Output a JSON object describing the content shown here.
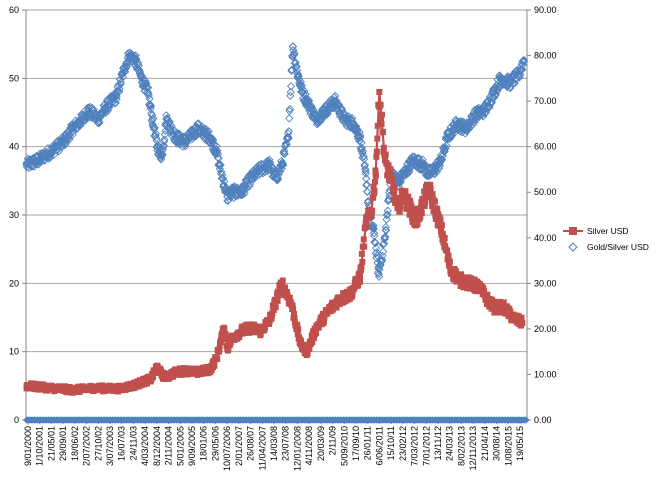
{
  "chart_data": {
    "type": "line",
    "grid": true,
    "legend_placement": "right",
    "title": "",
    "xlabel": "",
    "ylabel": "",
    "ylim_left": [
      0,
      60
    ],
    "ylim_right": [
      0,
      90
    ],
    "left_ticks": [
      "0",
      "10",
      "20",
      "30",
      "40",
      "50",
      "60"
    ],
    "right_ticks": [
      "0.00",
      "10.00",
      "20.00",
      "30.00",
      "40.00",
      "50.00",
      "60.00",
      "70.00",
      "80.00",
      "90.00"
    ],
    "x_labels": [
      "9/01/2000",
      "1/10/2001",
      "21/05/01",
      "29/09/01",
      "18/06/02",
      "2/07/2002",
      "27/10/02",
      "3/07/2003",
      "16/07/03",
      "24/11/03",
      "4/03/2004",
      "8/12/2004",
      "2/11/2004",
      "5/01/2005",
      "9/09/2005",
      "18/01/06",
      "29/05/06",
      "10/07/2006",
      "2/01/2007",
      "26/08/07",
      "11/04/2007",
      "14/03/08",
      "23/07/08",
      "12/01/2008",
      "4/11/2008",
      "20/03/09",
      "2/11/09",
      "5/09/2010",
      "17/09/10",
      "26/01/11",
      "6/06/2011",
      "15/10/11",
      "23/02/12",
      "7/03/2012",
      "7/01/2012",
      "13/11/12",
      "24/03/13",
      "8/02/2013",
      "12/11/2013",
      "21/04/14",
      "30/08/14",
      "1/08/2015",
      "19/05/15"
    ],
    "series": [
      {
        "name": "Silver USD",
        "axis": "left",
        "color": "#c0504d",
        "marker": "square",
        "x": [
          2000.02,
          2000.5,
          2001.0,
          2001.5,
          2001.8,
          2002.2,
          2002.6,
          2003.0,
          2003.4,
          2003.7,
          2004.0,
          2004.2,
          2004.35,
          2004.5,
          2004.8,
          2005.1,
          2005.5,
          2005.9,
          2006.1,
          2006.35,
          2006.45,
          2006.6,
          2006.9,
          2007.2,
          2007.5,
          2007.8,
          2008.05,
          2008.2,
          2008.5,
          2008.8,
          2009.0,
          2009.3,
          2009.7,
          2010.0,
          2010.4,
          2010.7,
          2010.9,
          2011.05,
          2011.2,
          2011.32,
          2011.5,
          2011.7,
          2011.9,
          2012.1,
          2012.5,
          2012.9,
          2013.1,
          2013.3,
          2013.6,
          2013.9,
          2014.2,
          2014.5,
          2014.8,
          2015.0,
          2015.3,
          2015.6,
          2015.9
        ],
        "values": [
          5.0,
          4.8,
          4.6,
          4.4,
          4.5,
          4.7,
          4.6,
          4.6,
          5.0,
          5.5,
          6.0,
          7.8,
          6.6,
          6.3,
          7.0,
          7.2,
          7.0,
          7.4,
          9.0,
          13.5,
          10.5,
          12.0,
          13.0,
          13.5,
          13.0,
          14.5,
          18.0,
          20.0,
          17.0,
          11.0,
          10.0,
          13.5,
          16.0,
          17.5,
          18.5,
          21.0,
          29.0,
          30.0,
          36.0,
          48.0,
          38.0,
          35.0,
          31.0,
          33.0,
          29.0,
          34.0,
          31.0,
          28.0,
          22.0,
          20.5,
          20.0,
          19.5,
          17.5,
          16.5,
          16.5,
          15.0,
          14.2
        ]
      },
      {
        "name": "Gold/Silver USD",
        "axis": "right",
        "color": "#4f81bd",
        "marker": "diamond-open",
        "x": [
          2000.02,
          2000.4,
          2000.8,
          2001.2,
          2001.5,
          2001.8,
          2002.0,
          2002.3,
          2002.6,
          2002.9,
          2003.1,
          2003.3,
          2003.5,
          2003.7,
          2003.9,
          2004.05,
          2004.2,
          2004.35,
          2004.5,
          2004.8,
          2005.1,
          2005.5,
          2005.9,
          2006.1,
          2006.3,
          2006.45,
          2006.6,
          2006.9,
          2007.2,
          2007.5,
          2007.8,
          2008.0,
          2008.2,
          2008.4,
          2008.55,
          2008.7,
          2008.85,
          2009.0,
          2009.3,
          2009.6,
          2009.9,
          2010.2,
          2010.5,
          2010.7,
          2010.9,
          2011.0,
          2011.15,
          2011.3,
          2011.5,
          2011.7,
          2011.9,
          2012.1,
          2012.4,
          2012.7,
          2012.9,
          2013.1,
          2013.3,
          2013.5,
          2013.8,
          2014.1,
          2014.4,
          2014.7,
          2015.0,
          2015.2,
          2015.5,
          2015.8,
          2015.95
        ],
        "values": [
          56.0,
          57.0,
          59.0,
          61.0,
          64.0,
          66.0,
          68.0,
          66.0,
          69.0,
          71.0,
          76.0,
          80.0,
          79.0,
          75.0,
          72.0,
          66.0,
          60.0,
          58.0,
          66.0,
          62.0,
          61.0,
          64.0,
          62.0,
          59.0,
          53.0,
          49.0,
          50.0,
          50.0,
          53.0,
          55.0,
          56.0,
          53.0,
          56.0,
          62.0,
          82.0,
          76.0,
          72.0,
          70.0,
          66.0,
          68.0,
          70.0,
          66.0,
          65.0,
          62.0,
          53.0,
          45.0,
          41.0,
          32.0,
          40.0,
          54.0,
          52.0,
          54.0,
          57.0,
          56.0,
          54.0,
          55.0,
          57.0,
          62.0,
          65.0,
          64.0,
          67.0,
          68.0,
          72.0,
          75.0,
          74.0,
          76.0,
          79.0
        ]
      }
    ]
  }
}
